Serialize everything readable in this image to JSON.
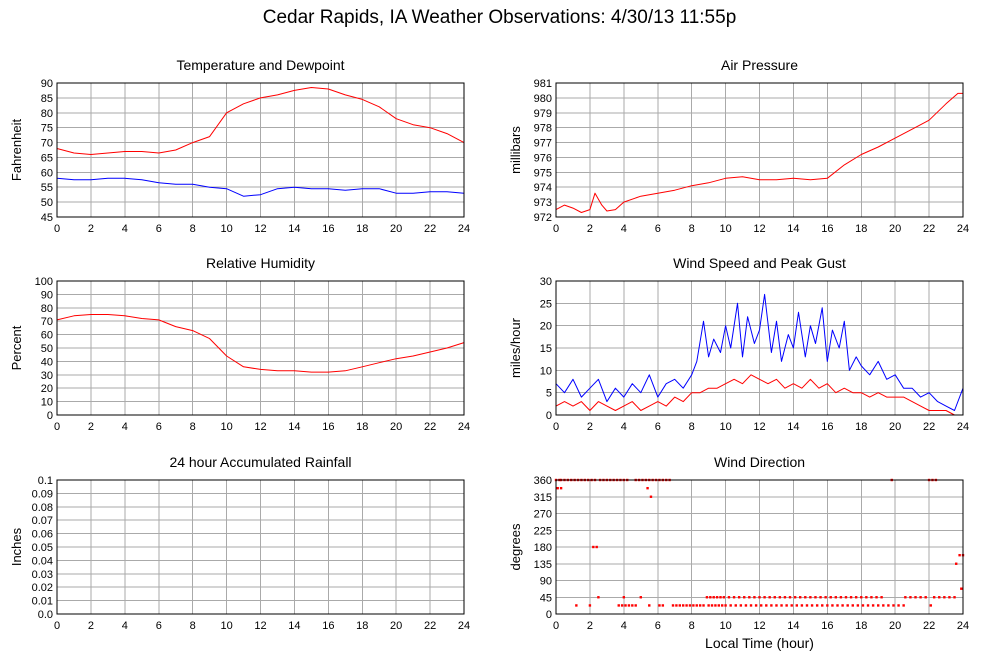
{
  "page": {
    "title": "Cedar Rapids, IA Weather Observations: 4/30/13 11:55p"
  },
  "colors": {
    "primary_series": "#ff0000",
    "secondary_series": "#0000ff",
    "grid": "#aaaaaa"
  },
  "chart_data": [
    {
      "id": "temperature",
      "type": "line",
      "title": "Temperature and Dewpoint",
      "xlabel": "",
      "ylabel": "Fahrenheit",
      "xlim": [
        0,
        24
      ],
      "ylim": [
        45,
        90
      ],
      "xticks": [
        0,
        2,
        4,
        6,
        8,
        10,
        12,
        14,
        16,
        18,
        20,
        22,
        24
      ],
      "yticks": [
        45,
        50,
        55,
        60,
        65,
        70,
        75,
        80,
        85,
        90
      ],
      "grid": true,
      "series": [
        {
          "color": "#ff0000",
          "x": [
            0,
            1,
            2,
            3,
            4,
            5,
            6,
            7,
            8,
            9,
            10,
            11,
            12,
            13,
            14,
            15,
            16,
            17,
            18,
            19,
            20,
            21,
            22,
            23,
            24
          ],
          "y": [
            68,
            66.5,
            66,
            66.5,
            67,
            67,
            66.5,
            67.5,
            70,
            72,
            80,
            83,
            85,
            86,
            87.5,
            88.5,
            88,
            86,
            84.5,
            82,
            78,
            76,
            75,
            73,
            70
          ]
        },
        {
          "color": "#0000ff",
          "x": [
            0,
            1,
            2,
            3,
            4,
            5,
            6,
            7,
            8,
            9,
            10,
            11,
            12,
            13,
            14,
            15,
            16,
            17,
            18,
            19,
            20,
            21,
            22,
            23,
            24
          ],
          "y": [
            58,
            57.5,
            57.5,
            58,
            58,
            57.5,
            56.5,
            56,
            56,
            55,
            54.5,
            52,
            52.5,
            54.5,
            55,
            54.5,
            54.5,
            54,
            54.5,
            54.5,
            53,
            53,
            53.5,
            53.5,
            53
          ]
        }
      ]
    },
    {
      "id": "pressure",
      "type": "line",
      "title": "Air Pressure",
      "xlabel": "",
      "ylabel": "millibars",
      "xlim": [
        0,
        24
      ],
      "ylim": [
        972,
        981
      ],
      "xticks": [
        0,
        2,
        4,
        6,
        8,
        10,
        12,
        14,
        16,
        18,
        20,
        22,
        24
      ],
      "yticks": [
        972,
        973,
        974,
        975,
        976,
        977,
        978,
        979,
        980,
        981
      ],
      "grid": true,
      "series": [
        {
          "color": "#ff0000",
          "x": [
            0,
            0.5,
            1,
            1.5,
            2,
            2.3,
            2.7,
            3,
            3.5,
            4,
            5,
            6,
            7,
            8,
            9,
            10,
            11,
            12,
            13,
            14,
            15,
            16,
            17,
            18,
            19,
            20,
            21,
            22,
            23,
            23.7,
            24
          ],
          "y": [
            972.5,
            972.8,
            972.6,
            972.3,
            972.5,
            973.6,
            972.8,
            972.4,
            972.5,
            973.0,
            973.4,
            973.6,
            973.8,
            974.1,
            974.3,
            974.6,
            974.7,
            974.5,
            974.5,
            974.6,
            974.5,
            974.6,
            975.5,
            976.2,
            976.7,
            977.3,
            977.9,
            978.5,
            979.6,
            980.3,
            980.3
          ]
        }
      ]
    },
    {
      "id": "humidity",
      "type": "line",
      "title": "Relative Humidity",
      "xlabel": "",
      "ylabel": "Percent",
      "xlim": [
        0,
        24
      ],
      "ylim": [
        0,
        100
      ],
      "xticks": [
        0,
        2,
        4,
        6,
        8,
        10,
        12,
        14,
        16,
        18,
        20,
        22,
        24
      ],
      "yticks": [
        0,
        10,
        20,
        30,
        40,
        50,
        60,
        70,
        80,
        90,
        100
      ],
      "grid": true,
      "series": [
        {
          "color": "#ff0000",
          "x": [
            0,
            1,
            2,
            3,
            4,
            5,
            6,
            7,
            8,
            9,
            10,
            11,
            12,
            13,
            14,
            15,
            16,
            17,
            18,
            19,
            20,
            21,
            22,
            23,
            24
          ],
          "y": [
            71,
            74,
            75,
            75,
            74,
            72,
            71,
            66,
            63,
            57,
            44,
            36,
            34,
            33,
            33,
            32,
            32,
            33,
            36,
            39,
            42,
            44,
            47,
            50,
            54
          ]
        }
      ]
    },
    {
      "id": "wind-speed",
      "type": "line",
      "title": "Wind Speed and Peak Gust",
      "xlabel": "",
      "ylabel": "miles/hour",
      "xlim": [
        0,
        24
      ],
      "ylim": [
        0,
        30
      ],
      "xticks": [
        0,
        2,
        4,
        6,
        8,
        10,
        12,
        14,
        16,
        18,
        20,
        22,
        24
      ],
      "yticks": [
        0,
        5,
        10,
        15,
        20,
        25,
        30
      ],
      "grid": true,
      "series": [
        {
          "color": "#0000ff",
          "x": [
            0,
            0.5,
            1,
            1.5,
            2,
            2.5,
            3,
            3.5,
            4,
            4.5,
            5,
            5.5,
            6,
            6.5,
            7,
            7.5,
            8,
            8.3,
            8.7,
            9,
            9.3,
            9.7,
            10,
            10.3,
            10.7,
            11,
            11.3,
            11.7,
            12,
            12.3,
            12.7,
            13,
            13.3,
            13.7,
            14,
            14.3,
            14.7,
            15,
            15.3,
            15.7,
            16,
            16.3,
            16.7,
            17,
            17.3,
            17.7,
            18,
            18.5,
            19,
            19.5,
            20,
            20.5,
            21,
            21.5,
            22,
            22.5,
            23,
            23.5,
            24
          ],
          "y": [
            7,
            5,
            8,
            4,
            6,
            8,
            3,
            6,
            4,
            7,
            5,
            9,
            4,
            7,
            8,
            6,
            9,
            12,
            21,
            13,
            17,
            14,
            20,
            15,
            25,
            13,
            22,
            16,
            19,
            27,
            14,
            21,
            12,
            18,
            15,
            23,
            13,
            20,
            16,
            24,
            12,
            19,
            15,
            21,
            10,
            13,
            11,
            9,
            12,
            8,
            9,
            6,
            6,
            4,
            5,
            3,
            2,
            1,
            6
          ]
        },
        {
          "color": "#ff0000",
          "x": [
            0,
            0.5,
            1,
            1.5,
            2,
            2.5,
            3,
            3.5,
            4,
            4.5,
            5,
            5.5,
            6,
            6.5,
            7,
            7.5,
            8,
            8.5,
            9,
            9.5,
            10,
            10.5,
            11,
            11.5,
            12,
            12.5,
            13,
            13.5,
            14,
            14.5,
            15,
            15.5,
            16,
            16.5,
            17,
            17.5,
            18,
            18.5,
            19,
            19.5,
            20,
            20.5,
            21,
            21.5,
            22,
            22.5,
            23,
            23.5,
            24
          ],
          "y": [
            2,
            3,
            2,
            3,
            1,
            3,
            2,
            1,
            2,
            3,
            1,
            2,
            3,
            2,
            4,
            3,
            5,
            5,
            6,
            6,
            7,
            8,
            7,
            9,
            8,
            7,
            8,
            6,
            7,
            6,
            8,
            6,
            7,
            5,
            6,
            5,
            5,
            4,
            5,
            4,
            4,
            4,
            3,
            2,
            1,
            1,
            1,
            0,
            0
          ]
        }
      ]
    },
    {
      "id": "rainfall",
      "type": "line",
      "title": "24 hour Accumulated Rainfall",
      "xlabel": "",
      "ylabel": "Inches",
      "xlim": [
        0,
        24
      ],
      "ylim": [
        0,
        0.1
      ],
      "xticks": [
        0,
        2,
        4,
        6,
        8,
        10,
        12,
        14,
        16,
        18,
        20,
        22,
        24
      ],
      "yticks": [
        0,
        0.01,
        0.02,
        0.03,
        0.04,
        0.05,
        0.06,
        0.07,
        0.08,
        0.09,
        0.1
      ],
      "ytick_labels": [
        "0.0",
        "0.01",
        "0.02",
        "0.03",
        "0.04",
        "0.05",
        "0.06",
        "0.07",
        "0.08",
        "0.09",
        "0.1"
      ],
      "grid": true,
      "series": [
        {
          "color": "#ff0000",
          "x": [
            0,
            24
          ],
          "y": [
            0,
            0
          ]
        }
      ]
    },
    {
      "id": "wind-direction",
      "type": "scatter",
      "title": "Wind Direction",
      "xlabel": "Local Time (hour)",
      "ylabel": "degrees",
      "xlim": [
        0,
        24
      ],
      "ylim": [
        0,
        360
      ],
      "xticks": [
        0,
        2,
        4,
        6,
        8,
        10,
        12,
        14,
        16,
        18,
        20,
        22,
        24
      ],
      "yticks": [
        0,
        45,
        90,
        135,
        180,
        225,
        270,
        315,
        360
      ],
      "grid": true,
      "series": [
        {
          "color": "#ff0000",
          "x": [
            0,
            0.2,
            0.3,
            0.5,
            0.7,
            0.9,
            1.1,
            1.3,
            1.5,
            1.7,
            1.9,
            2.1,
            2.3,
            2.6,
            2.8,
            3.0,
            3.2,
            3.4,
            3.6,
            3.8,
            4.0,
            4.2,
            4.7,
            4.9,
            5.1,
            5.3,
            5.5,
            5.7,
            5.9,
            6.1,
            6.3,
            6.5,
            6.7,
            19.8,
            22.0,
            22.2,
            22.4,
            0.1,
            0.3,
            5.4,
            5.6,
            2.2,
            2.4,
            23.8,
            24.0,
            23.6,
            23.9,
            2.5,
            4.0,
            5.0,
            2.0,
            1.2,
            3.7,
            3.9,
            4.1,
            4.3,
            4.5,
            4.7,
            5.5,
            6.1,
            6.3,
            6.9,
            7.1,
            7.3,
            7.5,
            7.7,
            7.9,
            8.1,
            8.3,
            8.5,
            8.7,
            9.0,
            9.2,
            9.4,
            9.6,
            9.8,
            10.0,
            10.3,
            10.6,
            10.9,
            11.2,
            11.5,
            11.8,
            12.1,
            12.4,
            12.7,
            13.0,
            13.3,
            13.6,
            13.9,
            14.2,
            14.5,
            14.8,
            15.1,
            15.4,
            15.7,
            16.0,
            16.3,
            16.6,
            16.9,
            17.2,
            17.5,
            17.8,
            18.1,
            18.4,
            18.7,
            19.0,
            19.3,
            19.6,
            19.9,
            20.2,
            20.5,
            22.1,
            8.9,
            9.1,
            9.3,
            9.5,
            9.7,
            9.9,
            10.2,
            10.5,
            10.8,
            11.1,
            11.4,
            11.7,
            12.0,
            12.3,
            12.6,
            12.9,
            13.2,
            13.5,
            13.8,
            14.1,
            14.4,
            14.7,
            15.0,
            15.3,
            15.6,
            15.9,
            16.2,
            16.5,
            16.8,
            17.1,
            17.4,
            17.7,
            18.0,
            18.3,
            18.6,
            18.9,
            19.2,
            20.6,
            20.9,
            21.2,
            21.5,
            21.8,
            22.3,
            22.6,
            22.9,
            23.2,
            23.5
          ],
          "y": [
            360,
            360,
            360,
            360,
            360,
            360,
            360,
            360,
            360,
            360,
            360,
            360,
            360,
            360,
            360,
            360,
            360,
            360,
            360,
            360,
            360,
            360,
            360,
            360,
            360,
            360,
            360,
            360,
            360,
            360,
            360,
            360,
            360,
            360,
            360,
            360,
            360,
            338,
            338,
            338,
            315,
            180,
            180,
            158,
            158,
            135,
            68,
            45,
            45,
            45,
            23,
            23,
            23,
            23,
            23,
            23,
            23,
            23,
            23,
            23,
            23,
            23,
            23,
            23,
            23,
            23,
            23,
            23,
            23,
            23,
            23,
            23,
            23,
            23,
            23,
            23,
            23,
            23,
            23,
            23,
            23,
            23,
            23,
            23,
            23,
            23,
            23,
            23,
            23,
            23,
            23,
            23,
            23,
            23,
            23,
            23,
            23,
            23,
            23,
            23,
            23,
            23,
            23,
            23,
            23,
            23,
            23,
            23,
            23,
            23,
            23,
            23,
            23,
            45,
            45,
            45,
            45,
            45,
            45,
            45,
            45,
            45,
            45,
            45,
            45,
            45,
            45,
            45,
            45,
            45,
            45,
            45,
            45,
            45,
            45,
            45,
            45,
            45,
            45,
            45,
            45,
            45,
            45,
            45,
            45,
            45,
            45,
            45,
            45,
            45,
            45,
            45,
            45,
            45,
            45,
            45,
            45,
            45,
            45,
            45
          ]
        }
      ]
    }
  ]
}
